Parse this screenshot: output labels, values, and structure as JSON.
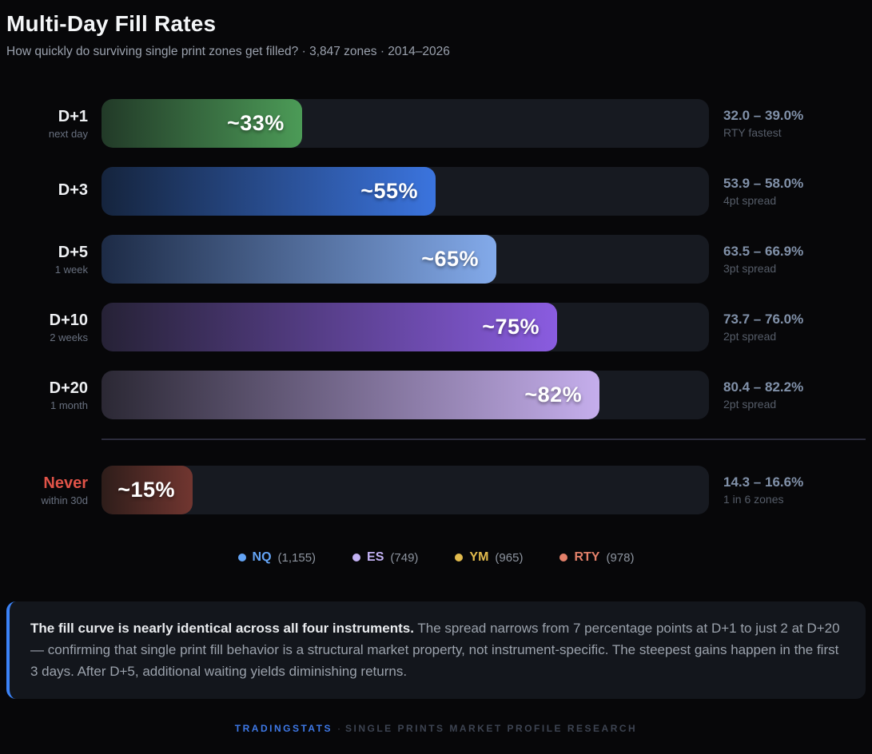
{
  "header": {
    "title": "Multi-Day Fill Rates",
    "subtitle": "How quickly do surviving single print zones get filled? · 3,847 zones · 2014–2026"
  },
  "chart_data": {
    "type": "bar",
    "orientation": "horizontal",
    "xlim": [
      0,
      100
    ],
    "grid": false,
    "divider_after": 5,
    "categories": [
      "D+1",
      "D+3",
      "D+5",
      "D+10",
      "D+20",
      "Never"
    ],
    "values": [
      33,
      55,
      65,
      75,
      82,
      15
    ],
    "rows": [
      {
        "label": "D+1",
        "sublabel": "next day",
        "value": 33,
        "value_label": "~33%",
        "range": "32.0 – 39.0%",
        "range_note": "RTY fastest",
        "color_start": "#223a28",
        "color_end": "#4c9b57"
      },
      {
        "label": "D+3",
        "sublabel": "",
        "value": 55,
        "value_label": "~55%",
        "range": "53.9 – 58.0%",
        "range_note": "4pt spread",
        "color_start": "#15243d",
        "color_end": "#3b74de"
      },
      {
        "label": "D+5",
        "sublabel": "1 week",
        "value": 65,
        "value_label": "~65%",
        "range": "63.5 – 66.9%",
        "range_note": "3pt spread",
        "color_start": "#1d2b46",
        "color_end": "#83aaea"
      },
      {
        "label": "D+10",
        "sublabel": "2 weeks",
        "value": 75,
        "value_label": "~75%",
        "range": "73.7 – 76.0%",
        "range_note": "2pt spread",
        "color_start": "#262236",
        "color_end": "#8a5ce0"
      },
      {
        "label": "D+20",
        "sublabel": "1 month",
        "value": 82,
        "value_label": "~82%",
        "range": "80.4 – 82.2%",
        "range_note": "2pt spread",
        "color_start": "#2b2834",
        "color_end": "#c5aeec"
      },
      {
        "label": "Never",
        "sublabel": "within 30d",
        "value": 15,
        "value_label": "~15%",
        "range": "14.3 – 16.6%",
        "range_note": "1 in 6 zones",
        "color_start": "#2e1d1a",
        "color_end": "#713630",
        "label_color": "#e05348"
      }
    ],
    "legend_position": "bottom-center",
    "legend": [
      {
        "symbol": "NQ",
        "count": "(1,155)",
        "color": "#64a4f5"
      },
      {
        "symbol": "ES",
        "count": "(749)",
        "color": "#c3b2f4"
      },
      {
        "symbol": "YM",
        "count": "(965)",
        "color": "#e2bb4d"
      },
      {
        "symbol": "RTY",
        "count": "(978)",
        "color": "#e3806a"
      }
    ]
  },
  "insight": {
    "bold": "The fill curve is nearly identical across all four instruments.",
    "text": "The spread narrows from 7 percentage points at D+1 to just 2 at D+20 — confirming that single print fill behavior is a structural market property, not instrument-specific. The steepest gains happen in the first 3 days. After D+5, additional waiting yields diminishing returns."
  },
  "footer": {
    "brand": "TRADINGSTATS",
    "separator": "·",
    "text": "SINGLE PRINTS MARKET PROFILE RESEARCH"
  }
}
